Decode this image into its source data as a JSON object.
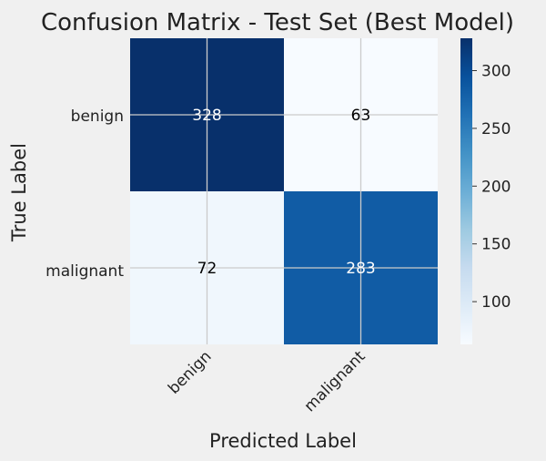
{
  "chart_data": {
    "type": "heatmap",
    "title": "Confusion Matrix - Test Set (Best Model)",
    "xlabel": "Predicted Label",
    "ylabel": "True Label",
    "row_labels": [
      "benign",
      "malignant"
    ],
    "col_labels": [
      "benign",
      "malignant"
    ],
    "values": [
      [
        328,
        63
      ],
      [
        72,
        283
      ]
    ],
    "colormap": "Blues",
    "colorbar": {
      "min": 63,
      "max": 328,
      "ticks": [
        "100",
        "150",
        "200",
        "250",
        "300"
      ]
    },
    "grid": true
  }
}
